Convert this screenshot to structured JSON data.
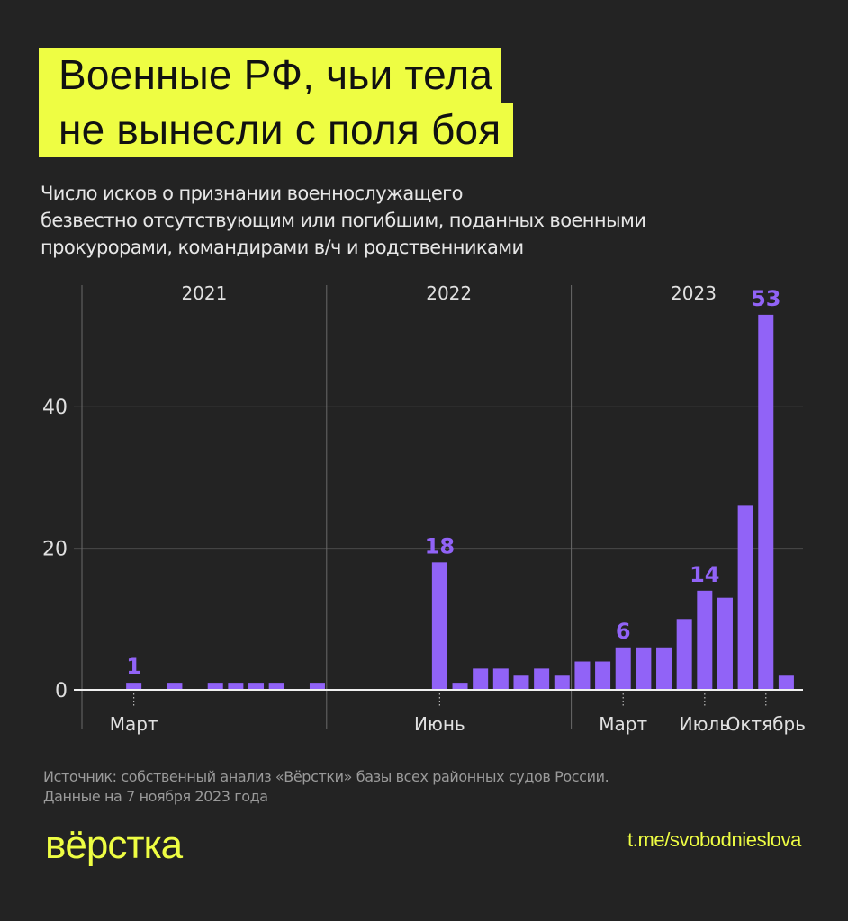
{
  "title": {
    "line1": "Военные РФ, чьи тела",
    "line2": "не вынесли с поля боя"
  },
  "subtitle": {
    "line1": "Число исков о признании военнослужащего",
    "line2": "безвестно отсутствующим или погибшим, поданных военными",
    "line3": "прокурорами, командирами в/ч и родственниками"
  },
  "colors": {
    "background": "#232323",
    "accent": "#eefd43",
    "bar": "#9163f7",
    "text": "#e8e8e8",
    "grid": "#4a4a4a"
  },
  "chart_data": {
    "type": "bar",
    "title": "Военные РФ, чьи тела не вынесли с поля боя",
    "subtitle": "Число исков о признании военнослужащего безвестно отсутствующим или погибшим, поданных военными прокурорами, командирами в/ч и родственниками",
    "xlabel": "",
    "ylabel": "",
    "ylim": [
      0,
      55
    ],
    "yticks": [
      0,
      20,
      40
    ],
    "grid": true,
    "years": [
      "2021",
      "2022",
      "2023"
    ],
    "categories": [
      "2021-01",
      "2021-02",
      "2021-03",
      "2021-04",
      "2021-05",
      "2021-06",
      "2021-07",
      "2021-08",
      "2021-09",
      "2021-10",
      "2021-11",
      "2021-12",
      "2022-01",
      "2022-02",
      "2022-03",
      "2022-04",
      "2022-05",
      "2022-06",
      "2022-07",
      "2022-08",
      "2022-09",
      "2022-10",
      "2022-11",
      "2022-12",
      "2023-01",
      "2023-02",
      "2023-03",
      "2023-04",
      "2023-05",
      "2023-06",
      "2023-07",
      "2023-08",
      "2023-09",
      "2023-10",
      "2023-11"
    ],
    "values": [
      0,
      0,
      1,
      0,
      1,
      0,
      1,
      1,
      1,
      1,
      0,
      1,
      0,
      0,
      0,
      0,
      0,
      18,
      1,
      3,
      3,
      2,
      3,
      2,
      4,
      4,
      6,
      6,
      6,
      10,
      14,
      13,
      26,
      53,
      2
    ],
    "month_labels": [
      {
        "index": 2,
        "label": "Март"
      },
      {
        "index": 17,
        "label": "Июнь"
      },
      {
        "index": 26,
        "label": "Март"
      },
      {
        "index": 30,
        "label": "Июль"
      },
      {
        "index": 33,
        "label": "Октябрь"
      }
    ],
    "annotations": [
      {
        "index": 2,
        "label": "1"
      },
      {
        "index": 17,
        "label": "18"
      },
      {
        "index": 26,
        "label": "6"
      },
      {
        "index": 30,
        "label": "14"
      },
      {
        "index": 33,
        "label": "53"
      }
    ]
  },
  "footer": {
    "source_line1": "Источник: собственный анализ «Вёрстки» базы всех районных судов России.",
    "source_line2": "Данные на 7 ноября 2023 года",
    "logo": "вёрстка",
    "link": "t.me/svobodnieslova"
  }
}
